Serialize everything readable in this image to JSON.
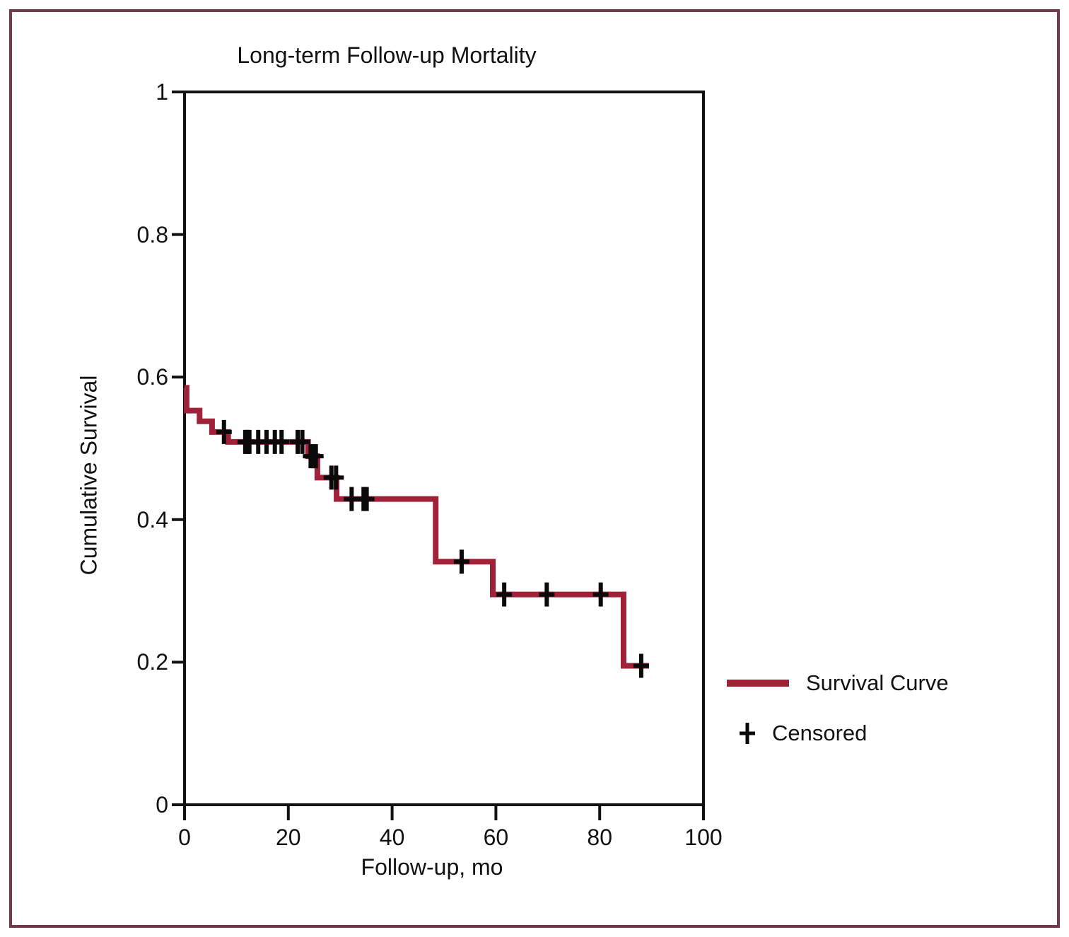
{
  "figure": {
    "border_color": "#74384A",
    "background_color": "#FFFFFF"
  },
  "chart": {
    "title": "Long-term Follow-up Mortality",
    "x_axis_label": "Follow-up, mo",
    "y_axis_label": "Cumulative Survival",
    "legend": {
      "line_label": "Survival Curve",
      "censored_label": "Censored"
    }
  },
  "chart_data": {
    "type": "line",
    "subtype": "kaplan-meier-step-function",
    "title": "Long-term Follow-up Mortality",
    "xlabel": "Follow-up, mo",
    "ylabel": "Cumulative Survival",
    "xlim": [
      0,
      100
    ],
    "ylim": [
      0,
      1
    ],
    "xticks": [
      0,
      20,
      40,
      60,
      80,
      100
    ],
    "yticks": [
      1,
      0.8,
      0.6,
      0.4,
      0.2,
      0
    ],
    "grid": false,
    "legend_position": "right-bottom-outside",
    "line_color": "#A02239",
    "censor_color": "#0A0A0A",
    "axis_color": "#111111",
    "series": [
      {
        "name": "Survival Curve",
        "start": [
          0,
          0.585
        ],
        "steps": [
          [
            0.4,
            0.553
          ],
          [
            2.9,
            0.538
          ],
          [
            5.3,
            0.523
          ],
          [
            8.4,
            0.509
          ],
          [
            23.8,
            0.489
          ],
          [
            25.6,
            0.459
          ],
          [
            29.3,
            0.429
          ],
          [
            48.4,
            0.341
          ],
          [
            59.4,
            0.295
          ],
          [
            84.6,
            0.195
          ]
        ],
        "end_time": 89.5
      }
    ],
    "censored_points": [
      [
        7.6,
        0.523
      ],
      [
        11.7,
        0.509
      ],
      [
        12.1,
        0.509
      ],
      [
        12.5,
        0.509
      ],
      [
        14.2,
        0.509
      ],
      [
        15.8,
        0.509
      ],
      [
        17.4,
        0.509
      ],
      [
        18.7,
        0.509
      ],
      [
        21.8,
        0.509
      ],
      [
        22.7,
        0.509
      ],
      [
        24.3,
        0.489
      ],
      [
        24.8,
        0.489
      ],
      [
        25.3,
        0.489
      ],
      [
        28.3,
        0.459
      ],
      [
        29.2,
        0.459
      ],
      [
        32.2,
        0.429
      ],
      [
        34.5,
        0.429
      ],
      [
        35.1,
        0.429
      ],
      [
        53.4,
        0.341
      ],
      [
        61.6,
        0.295
      ],
      [
        69.8,
        0.295
      ],
      [
        80.2,
        0.295
      ],
      [
        88.0,
        0.195
      ]
    ]
  }
}
